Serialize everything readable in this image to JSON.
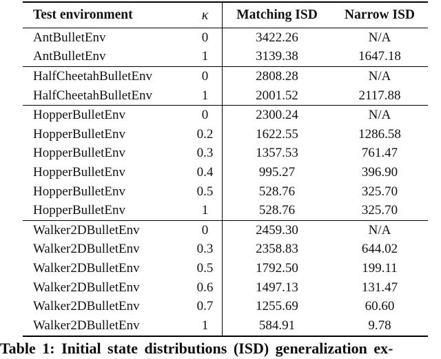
{
  "table": {
    "columns": [
      "Test environment",
      "κ",
      "Matching ISD",
      "Narrow ISD"
    ],
    "sections": [
      {
        "rows": [
          {
            "env": "AntBulletEnv",
            "kappa": "0",
            "matching": "3422.26",
            "narrow": "N/A"
          },
          {
            "env": "AntBulletEnv",
            "kappa": "1",
            "matching": "3139.38",
            "narrow": "1647.18"
          }
        ]
      },
      {
        "rows": [
          {
            "env": "HalfCheetahBulletEnv",
            "kappa": "0",
            "matching": "2808.28",
            "narrow": "N/A"
          },
          {
            "env": "HalfCheetahBulletEnv",
            "kappa": "1",
            "matching": "2001.52",
            "narrow": "2117.88"
          }
        ]
      },
      {
        "rows": [
          {
            "env": "HopperBulletEnv",
            "kappa": "0",
            "matching": "2300.24",
            "narrow": "N/A"
          },
          {
            "env": "HopperBulletEnv",
            "kappa": "0.2",
            "matching": "1622.55",
            "narrow": "1286.58"
          },
          {
            "env": "HopperBulletEnv",
            "kappa": "0.3",
            "matching": "1357.53",
            "narrow": "761.47"
          },
          {
            "env": "HopperBulletEnv",
            "kappa": "0.4",
            "matching": "995.27",
            "narrow": "396.90"
          },
          {
            "env": "HopperBulletEnv",
            "kappa": "0.5",
            "matching": "528.76",
            "narrow": "325.70"
          },
          {
            "env": "HopperBulletEnv",
            "kappa": "1",
            "matching": "528.76",
            "narrow": "325.70"
          }
        ]
      },
      {
        "rows": [
          {
            "env": "Walker2DBulletEnv",
            "kappa": "0",
            "matching": "2459.30",
            "narrow": "N/A"
          },
          {
            "env": "Walker2DBulletEnv",
            "kappa": "0.3",
            "matching": "2358.83",
            "narrow": "644.02"
          },
          {
            "env": "Walker2DBulletEnv",
            "kappa": "0.5",
            "matching": "1792.50",
            "narrow": "199.11"
          },
          {
            "env": "Walker2DBulletEnv",
            "kappa": "0.6",
            "matching": "1497.13",
            "narrow": "131.47"
          },
          {
            "env": "Walker2DBulletEnv",
            "kappa": "0.7",
            "matching": "1255.69",
            "narrow": "60.60"
          },
          {
            "env": "Walker2DBulletEnv",
            "kappa": "1",
            "matching": "584.91",
            "narrow": "9.78"
          }
        ]
      }
    ]
  },
  "caption": "Table 1: Initial state distributions (ISD) generalization ex-"
}
